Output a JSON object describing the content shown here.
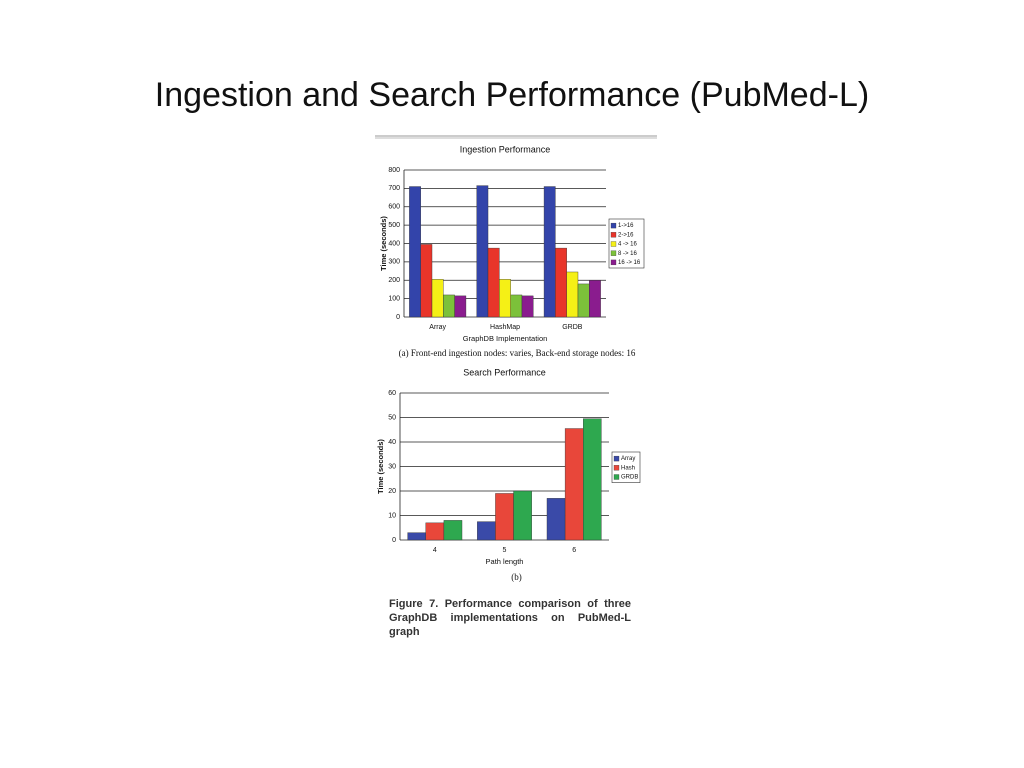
{
  "title": "Ingestion and Search Performance (PubMed-L)",
  "caption": "Figure 7. Performance comparison of three GraphDB implementations on PubMed-L graph",
  "chart_data": [
    {
      "type": "bar",
      "title": "Ingestion Performance",
      "caption": "(a) Front-end ingestion nodes: varies, Back-end storage nodes: 16",
      "x_label": "GraphDB Implementation",
      "y_label": "Time (seconds)",
      "categories": [
        "Array",
        "HashMap",
        "GRDB"
      ],
      "series": [
        {
          "name": "1->16",
          "color": "#3344aa",
          "values": [
            710,
            715,
            710
          ]
        },
        {
          "name": "2->16",
          "color": "#e8352a",
          "values": [
            395,
            375,
            375
          ]
        },
        {
          "name": "4 -> 16",
          "color": "#f5f016",
          "values": [
            205,
            205,
            245
          ]
        },
        {
          "name": "8 -> 16",
          "color": "#7cc13a",
          "values": [
            120,
            120,
            180
          ]
        },
        {
          "name": "16 -> 16",
          "color": "#8a1c8e",
          "values": [
            115,
            115,
            200
          ]
        }
      ],
      "ylim": [
        0,
        800
      ],
      "yticks": [
        0,
        100,
        200,
        300,
        400,
        500,
        600,
        700,
        800
      ],
      "grid": true,
      "legend": "right"
    },
    {
      "type": "bar",
      "title": "Search Performance",
      "caption": "(b)",
      "x_label": "Path length",
      "y_label": "Time (seconds)",
      "categories": [
        "4",
        "5",
        "6"
      ],
      "series": [
        {
          "name": "Array",
          "color": "#3a4aa8",
          "values": [
            3,
            7.5,
            17
          ]
        },
        {
          "name": "Hash",
          "color": "#e8473a",
          "values": [
            7,
            19,
            45.5
          ]
        },
        {
          "name": "GRDB",
          "color": "#2ea84f",
          "values": [
            8,
            20,
            49.5
          ]
        }
      ],
      "ylim": [
        0,
        60
      ],
      "yticks": [
        0,
        10,
        20,
        30,
        40,
        50,
        60
      ],
      "grid": true,
      "legend": "right"
    }
  ]
}
